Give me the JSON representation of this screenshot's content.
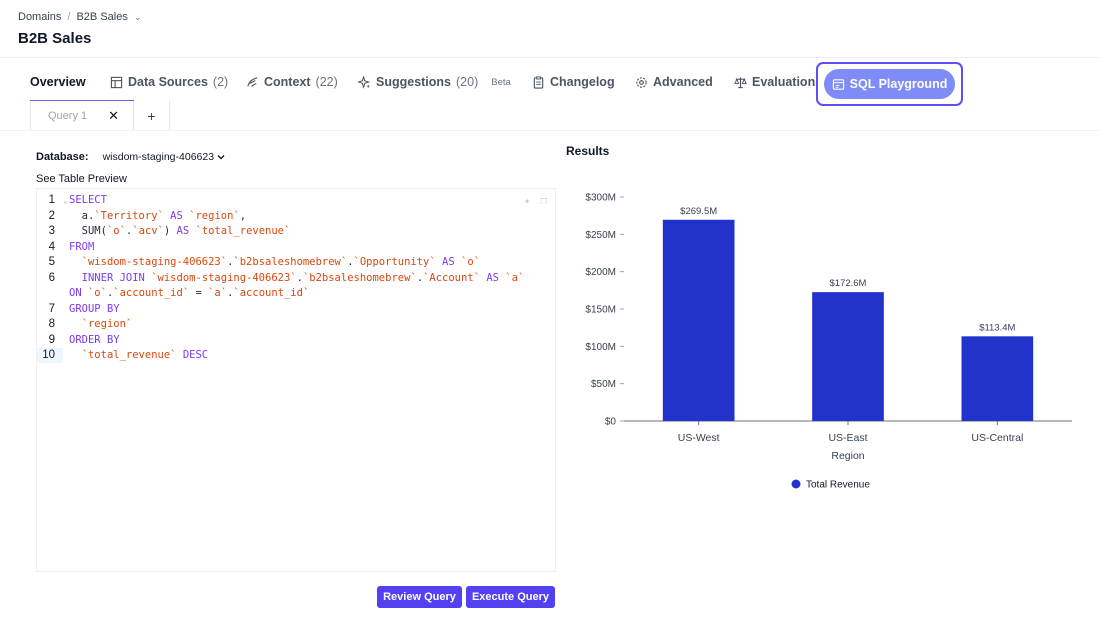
{
  "breadcrumb": {
    "root": "Domains",
    "current": "B2B Sales"
  },
  "page": {
    "title": "B2B Sales"
  },
  "tabs": [
    {
      "label": "Overview",
      "count": "",
      "icon": ""
    },
    {
      "label": "Data Sources",
      "count": "(2)",
      "icon": "table-icon"
    },
    {
      "label": "Context",
      "count": "(22)",
      "icon": "context-icon"
    },
    {
      "label": "Suggestions",
      "count": "(20)",
      "icon": "sparkle-icon",
      "badge": "Beta"
    },
    {
      "label": "Changelog",
      "count": "",
      "icon": "clipboard-icon"
    },
    {
      "label": "Advanced",
      "count": "",
      "icon": "gear-icon"
    },
    {
      "label": "Evaluation",
      "count": "",
      "icon": "scale-icon"
    },
    {
      "label": "SQL Playground",
      "count": "",
      "icon": "sql-icon"
    }
  ],
  "query_tabs": [
    {
      "label": "Query 1"
    }
  ],
  "database": {
    "label": "Database:",
    "value": "wisdom-staging-406623"
  },
  "table_preview": "See Table Preview",
  "code_lines": [
    {
      "num": "1",
      "text": "SELECT"
    },
    {
      "num": "2",
      "text": "  a.`Territory` AS `region`,"
    },
    {
      "num": "3",
      "text": "  SUM(`o`.`acv`) AS `total_revenue`"
    },
    {
      "num": "4",
      "text": "FROM"
    },
    {
      "num": "5",
      "text": "  `wisdom-staging-406623`.`b2bsaleshomebrew`.`Opportunity` AS `o`"
    },
    {
      "num": "6",
      "text": "  INNER JOIN `wisdom-staging-406623`.`b2bsaleshomebrew`.`Account` AS `a`"
    },
    {
      "num": "",
      "text": "ON `o`.`account_id` = `a`.`account_id`"
    },
    {
      "num": "7",
      "text": "GROUP BY"
    },
    {
      "num": "8",
      "text": "  `region`"
    },
    {
      "num": "9",
      "text": "ORDER BY"
    },
    {
      "num": "10",
      "text": "  `total_revenue` DESC"
    }
  ],
  "buttons": {
    "review": "Review Query",
    "execute": "Execute Query"
  },
  "results": {
    "title": "Results"
  },
  "colors": {
    "accent": "#5340f0",
    "bar": "#2233cc",
    "tab_active": "#7f8cf7"
  },
  "chart_data": {
    "type": "bar",
    "categories": [
      "US-West",
      "US-East",
      "US-Central"
    ],
    "series": [
      {
        "name": "Total Revenue",
        "values": [
          269.5,
          172.6,
          113.4
        ]
      }
    ],
    "data_labels": [
      "$269.5M",
      "$172.6M",
      "$113.4M"
    ],
    "y_ticks": [
      "$0",
      "$50M",
      "$100M",
      "$150M",
      "$200M",
      "$250M",
      "$300M"
    ],
    "ylim": [
      0,
      300
    ],
    "xlabel": "Region",
    "ylabel": "",
    "legend": "bottom"
  }
}
